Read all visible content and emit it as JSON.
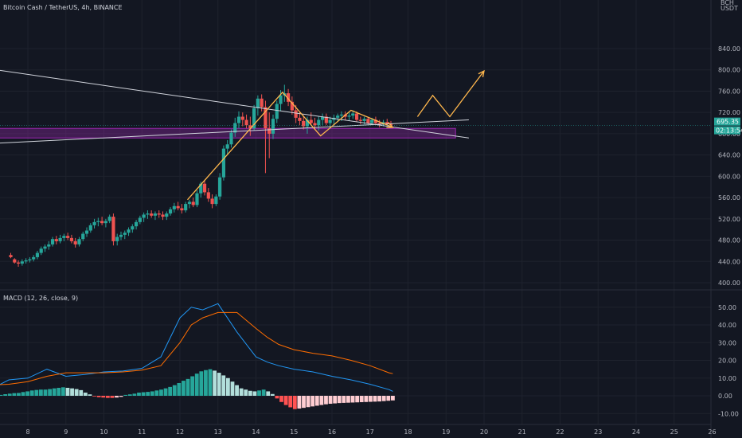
{
  "colors": {
    "background": "#131722",
    "grid": "#1e222d",
    "axis_text": "#b2b5be",
    "candle_up": "#26a69a",
    "candle_down": "#ef5350",
    "macd_line": "#2196f3",
    "signal_line": "#ff6d00",
    "hist_up_strong": "#26a69a",
    "hist_up_weak": "#b2dfdb",
    "hist_down_strong": "#ff5252",
    "hist_down_weak": "#ffcdd2",
    "trendline": "#d1d4dc",
    "arrow": "#ffb74d",
    "zone": "#9c27b0",
    "price_tag": "#26a69a",
    "timer_tag": "#26a69a"
  },
  "header": {
    "title": "Bitcoin Cash / TetherUS, 4h, BINANCE"
  },
  "price_axis": {
    "currency_top": "BCH",
    "currency_unit": "USDT",
    "current_price": "695.35",
    "countdown": "02:13:54"
  },
  "macd_header": {
    "label": "MACD (12, 26, close, 9)"
  },
  "chart_data": [
    {
      "type": "candlestick",
      "title": "Bitcoin Cash / TetherUS, 4h, BINANCE",
      "x_ticks": [
        "8",
        "9",
        "10",
        "11",
        "12",
        "13",
        "14",
        "15",
        "16",
        "17",
        "18",
        "19",
        "20",
        "21",
        "22",
        "23",
        "24",
        "25",
        "26"
      ],
      "y_ticks": [
        "400.00",
        "440.00",
        "480.00",
        "520.00",
        "560.00",
        "600.00",
        "640.00",
        "680.00",
        "720.00",
        "760.00",
        "800.00",
        "840.00"
      ],
      "ylim": [
        395,
        865
      ],
      "last_price": 695.35,
      "candles": [
        [
          7.55,
          452,
          456,
          446,
          448
        ],
        [
          7.65,
          444,
          446,
          436,
          438
        ],
        [
          7.75,
          438,
          442,
          430,
          436
        ],
        [
          7.85,
          436,
          444,
          432,
          440
        ],
        [
          7.95,
          440,
          446,
          436,
          442
        ],
        [
          8.05,
          442,
          448,
          438,
          444
        ],
        [
          8.15,
          444,
          452,
          440,
          448
        ],
        [
          8.25,
          448,
          460,
          444,
          456
        ],
        [
          8.35,
          456,
          468,
          452,
          464
        ],
        [
          8.45,
          464,
          472,
          458,
          468
        ],
        [
          8.55,
          468,
          478,
          462,
          472
        ],
        [
          8.65,
          472,
          486,
          468,
          482
        ],
        [
          8.75,
          482,
          488,
          472,
          478
        ],
        [
          8.85,
          478,
          490,
          474,
          484
        ],
        [
          8.95,
          484,
          492,
          478,
          488
        ],
        [
          9.05,
          488,
          494,
          480,
          484
        ],
        [
          9.15,
          484,
          490,
          474,
          478
        ],
        [
          9.25,
          478,
          484,
          466,
          472
        ],
        [
          9.35,
          472,
          486,
          468,
          482
        ],
        [
          9.45,
          482,
          496,
          478,
          492
        ],
        [
          9.55,
          492,
          504,
          486,
          498
        ],
        [
          9.65,
          498,
          512,
          494,
          508
        ],
        [
          9.75,
          508,
          520,
          502,
          514
        ],
        [
          9.85,
          514,
          522,
          506,
          516
        ],
        [
          9.95,
          516,
          524,
          508,
          512
        ],
        [
          10.05,
          512,
          520,
          504,
          516
        ],
        [
          10.15,
          516,
          528,
          512,
          524
        ],
        [
          10.25,
          524,
          530,
          470,
          478
        ],
        [
          10.35,
          478,
          492,
          470,
          486
        ],
        [
          10.45,
          486,
          496,
          480,
          490
        ],
        [
          10.55,
          490,
          498,
          482,
          494
        ],
        [
          10.65,
          494,
          504,
          488,
          500
        ],
        [
          10.75,
          500,
          510,
          494,
          506
        ],
        [
          10.85,
          506,
          518,
          500,
          514
        ],
        [
          10.95,
          514,
          526,
          510,
          522
        ],
        [
          11.05,
          522,
          532,
          514,
          528
        ],
        [
          11.15,
          528,
          536,
          520,
          530
        ],
        [
          11.25,
          530,
          536,
          522,
          526
        ],
        [
          11.35,
          526,
          534,
          518,
          530
        ],
        [
          11.45,
          530,
          536,
          522,
          528
        ],
        [
          11.55,
          528,
          534,
          518,
          524
        ],
        [
          11.65,
          524,
          534,
          518,
          530
        ],
        [
          11.75,
          530,
          542,
          526,
          538
        ],
        [
          11.85,
          538,
          550,
          532,
          544
        ],
        [
          11.95,
          544,
          552,
          536,
          540
        ],
        [
          12.05,
          540,
          548,
          530,
          536
        ],
        [
          12.15,
          536,
          552,
          532,
          548
        ],
        [
          12.25,
          548,
          556,
          540,
          552
        ],
        [
          12.35,
          552,
          560,
          542,
          546
        ],
        [
          12.45,
          546,
          574,
          542,
          568
        ],
        [
          12.55,
          568,
          590,
          560,
          586
        ],
        [
          12.65,
          586,
          592,
          564,
          570
        ],
        [
          12.75,
          570,
          578,
          552,
          558
        ],
        [
          12.85,
          558,
          566,
          540,
          548
        ],
        [
          12.95,
          548,
          566,
          544,
          562
        ],
        [
          13.05,
          562,
          606,
          556,
          598
        ],
        [
          13.15,
          598,
          658,
          592,
          652
        ],
        [
          13.25,
          652,
          668,
          640,
          660
        ],
        [
          13.35,
          660,
          688,
          654,
          682
        ],
        [
          13.45,
          682,
          710,
          674,
          700
        ],
        [
          13.55,
          700,
          722,
          690,
          712
        ],
        [
          13.65,
          712,
          720,
          694,
          706
        ],
        [
          13.75,
          706,
          716,
          690,
          696
        ],
        [
          13.85,
          696,
          712,
          676,
          690
        ],
        [
          13.95,
          690,
          734,
          686,
          728
        ],
        [
          14.05,
          728,
          752,
          714,
          746
        ],
        [
          14.15,
          746,
          754,
          722,
          730
        ],
        [
          14.25,
          730,
          742,
          606,
          690
        ],
        [
          14.35,
          690,
          720,
          634,
          680
        ],
        [
          14.45,
          680,
          716,
          670,
          708
        ],
        [
          14.55,
          708,
          742,
          700,
          736
        ],
        [
          14.65,
          736,
          762,
          722,
          752
        ],
        [
          14.75,
          752,
          772,
          740,
          756
        ],
        [
          14.85,
          756,
          764,
          732,
          740
        ],
        [
          14.95,
          740,
          750,
          716,
          724
        ],
        [
          15.05,
          724,
          734,
          700,
          710
        ],
        [
          15.15,
          710,
          720,
          696,
          704
        ],
        [
          15.25,
          704,
          714,
          688,
          694
        ],
        [
          15.35,
          694,
          712,
          680,
          706
        ],
        [
          15.45,
          706,
          720,
          696,
          700
        ],
        [
          15.55,
          700,
          710,
          688,
          696
        ],
        [
          15.65,
          696,
          712,
          686,
          706
        ],
        [
          15.75,
          706,
          718,
          696,
          712
        ],
        [
          15.85,
          712,
          718,
          696,
          700
        ],
        [
          15.95,
          700,
          712,
          690,
          706
        ],
        [
          16.05,
          706,
          716,
          698,
          710
        ],
        [
          16.15,
          710,
          718,
          702,
          714
        ],
        [
          16.25,
          714,
          722,
          704,
          716
        ],
        [
          16.35,
          716,
          722,
          706,
          712
        ],
        [
          16.45,
          712,
          720,
          704,
          714
        ],
        [
          16.55,
          714,
          724,
          708,
          718
        ],
        [
          16.65,
          718,
          722,
          702,
          706
        ],
        [
          16.75,
          706,
          712,
          698,
          704
        ],
        [
          16.85,
          704,
          712,
          698,
          708
        ],
        [
          16.95,
          708,
          712,
          698,
          700
        ],
        [
          17.05,
          700,
          710,
          696,
          706
        ],
        [
          17.15,
          706,
          712,
          698,
          700
        ],
        [
          17.25,
          700,
          706,
          692,
          698
        ],
        [
          17.35,
          698,
          706,
          694,
          702
        ],
        [
          17.45,
          702,
          708,
          696,
          698
        ],
        [
          17.55,
          698,
          704,
          692,
          695.35
        ]
      ],
      "annotations": {
        "resistance_line": [
          [
            6.0,
            812
          ],
          [
            19.6,
            672
          ]
        ],
        "support_line": [
          [
            6.0,
            658
          ],
          [
            19.6,
            706
          ]
        ],
        "zone": {
          "x": [
            5.85,
            19.25
          ],
          "y": [
            672,
            690
          ]
        },
        "path_arrow": [
          [
            12.2,
            556
          ],
          [
            14.7,
            758
          ],
          [
            15.7,
            676
          ],
          [
            16.5,
            724
          ],
          [
            17.6,
            692
          ]
        ],
        "projection_arrow": [
          [
            18.25,
            712
          ],
          [
            18.65,
            752
          ],
          [
            19.1,
            712
          ],
          [
            20.0,
            798
          ]
        ]
      }
    },
    {
      "type": "line",
      "title": "MACD (12, 26, close, 9)",
      "x_ticks": [
        "8",
        "9",
        "10",
        "11",
        "12",
        "13",
        "14",
        "15",
        "16",
        "17",
        "18",
        "19",
        "20",
        "21",
        "22",
        "23",
        "24",
        "25",
        "26"
      ],
      "y_ticks": [
        "-10.00",
        "0.00",
        "10.00",
        "20.00",
        "30.00",
        "40.00",
        "50.00"
      ],
      "ylim": [
        -16,
        57
      ],
      "x": [
        6.0,
        6.5,
        7.0,
        7.5,
        8.0,
        8.5,
        9.0,
        9.5,
        10.0,
        10.5,
        11.0,
        11.5,
        12.0,
        12.3,
        12.6,
        13.0,
        13.5,
        14.0,
        14.3,
        14.6,
        15.0,
        15.5,
        16.0,
        16.5,
        17.0,
        17.5,
        17.6
      ],
      "series": [
        {
          "name": "MACD",
          "values": [
            8,
            4,
            3.5,
            9,
            10,
            15,
            11,
            12,
            13.5,
            14,
            15.5,
            22,
            44,
            50,
            48.5,
            52,
            36,
            22,
            19,
            17,
            15,
            13.5,
            11,
            9,
            6.5,
            3.5,
            2.5
          ]
        },
        {
          "name": "Signal",
          "values": [
            10,
            7,
            6,
            6.5,
            8,
            11,
            13,
            13,
            13,
            13.5,
            14.5,
            17,
            30,
            40,
            44,
            47,
            47,
            38,
            33,
            29,
            26,
            24,
            22.5,
            20,
            17,
            13,
            12.5
          ]
        }
      ],
      "histogram": [
        -1.6,
        -1.8,
        -1.9,
        -1.7,
        -1.4,
        -1.2,
        -1,
        -0.8,
        -0.5,
        -0.3,
        0.2,
        0.5,
        0.9,
        1.2,
        1.5,
        1.6,
        2.1,
        2.5,
        3,
        3.3,
        3.5,
        3.5,
        3.8,
        4.2,
        4.5,
        4.8,
        4.5,
        4.2,
        3.8,
        3.2,
        1.8,
        0.8,
        -0.2,
        -0.8,
        -1,
        -1.2,
        -1.2,
        -1,
        -0.6,
        0.5,
        0.8,
        1.2,
        1.8,
        2,
        2.2,
        2.5,
        3,
        3.5,
        4.2,
        5,
        6,
        7.2,
        8.5,
        9.5,
        11,
        12.5,
        13.8,
        14.5,
        15,
        14.2,
        13,
        11.5,
        10,
        8,
        6,
        4.2,
        3.5,
        2.8,
        2.5,
        3,
        3.5,
        2.5,
        1,
        -1.5,
        -3.5,
        -5.2,
        -6.5,
        -7.5,
        -7.2,
        -6.8,
        -6.4,
        -6,
        -5.6,
        -5.2,
        -4.8,
        -4.5,
        -4.3,
        -4.1,
        -4,
        -3.9,
        -3.8,
        -3.7,
        -3.6,
        -3.5,
        -3.4,
        -3.3,
        -3.2,
        -3,
        -2.8,
        -2.6
      ]
    }
  ]
}
